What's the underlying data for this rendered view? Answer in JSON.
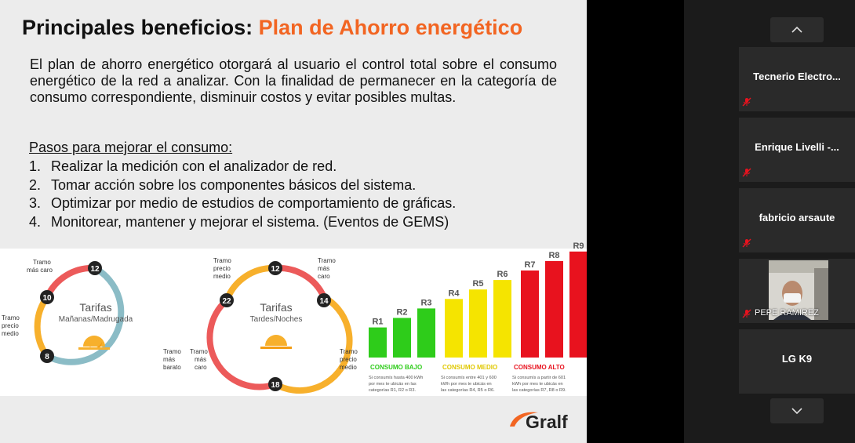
{
  "slide": {
    "title_main": "Principales beneficios:",
    "title_accent": "Plan de Ahorro energético",
    "paragraph": "El plan de ahorro energético otorgará al usuario el control total sobre el consumo energético de la red a analizar. Con la finalidad de permanecer en la categoría de consumo correspondiente, disminuir costos y evitar posibles multas.",
    "steps_heading": "Pasos para mejorar el consumo:",
    "steps": [
      {
        "num": "1.",
        "text": "Realizar la medición con el analizador de red."
      },
      {
        "num": "2.",
        "text": "Tomar acción sobre los componentes básicos del sistema."
      },
      {
        "num": "3.",
        "text": "Optimizar por medio de estudios de comportamiento de gráficas."
      },
      {
        "num": "4.",
        "text": "Monitorear, mantener y mejorar el sistema. (Eventos de GEMS)"
      }
    ],
    "logo": "Gralf"
  },
  "clock_left": {
    "title": "Tarifas",
    "subtitle": "Mañanas/Madrugada",
    "hours": [
      "12",
      "10",
      "8"
    ],
    "label_top": [
      "Tramo",
      "más caro"
    ],
    "label_left": [
      "Tramo",
      "precio",
      "medio"
    ],
    "label_right": [
      "Tramo",
      "más",
      "barato"
    ]
  },
  "clock_right": {
    "title": "Tarifas",
    "subtitle": "Tardes/Noches",
    "hours": [
      "12",
      "22",
      "14",
      "18"
    ],
    "label_top_left": [
      "Tramo",
      "precio",
      "medio"
    ],
    "label_top_right": [
      "Tramo",
      "más",
      "caro"
    ],
    "label_left": [
      "Tramo",
      "más",
      "caro"
    ],
    "label_right": [
      "Tramo",
      "precio",
      "medio"
    ]
  },
  "chart_data": {
    "type": "bar",
    "categories": [
      "R1",
      "R2",
      "R3",
      "R4",
      "R5",
      "R6",
      "R7",
      "R8",
      "R9"
    ],
    "values": [
      1,
      2,
      3,
      4,
      5,
      6,
      7,
      8,
      9
    ],
    "groups": [
      {
        "label": "CONSUMO BAJO",
        "color": "#2ecc1a",
        "members": [
          "R1",
          "R2",
          "R3"
        ],
        "note": [
          "Si consumís hasta 400 kWh",
          "por mes te ubicás en las",
          "categorías R1, R2 o R3."
        ]
      },
      {
        "label": "CONSUMO MEDIO",
        "color": "#f5e400",
        "members": [
          "R4",
          "R5",
          "R6"
        ],
        "note": [
          "Si consumís entre 401 y 600",
          "kWh por mes te ubicás en",
          "las categorías R4, R5 o R6."
        ]
      },
      {
        "label": "CONSUMO ALTO",
        "color": "#e8121e",
        "members": [
          "R7",
          "R8",
          "R9"
        ],
        "note": [
          "Si consumís a partir de 601",
          "kWh por mes te ubicás en",
          "las categorías R7, R8 o R9."
        ]
      }
    ]
  },
  "participants": [
    {
      "name": "Tecnerio  Electro...",
      "muted": true
    },
    {
      "name": "Enrique  Livelli  -...",
      "muted": true
    },
    {
      "name": "fabricio arsaute",
      "muted": true
    },
    {
      "name": "PEPE RAMIREZ",
      "muted": true,
      "video": true
    },
    {
      "name": "LG K9",
      "muted": false
    }
  ],
  "colors": {
    "accent": "#f26522",
    "clock_cheap": "#8bbcc6",
    "clock_mid": "#f7b02c",
    "clock_expensive": "#ec5a5a"
  },
  "icons": {
    "nav_up": "chevron-up-icon",
    "nav_down": "chevron-down-icon",
    "mic": "mic-muted-icon"
  }
}
